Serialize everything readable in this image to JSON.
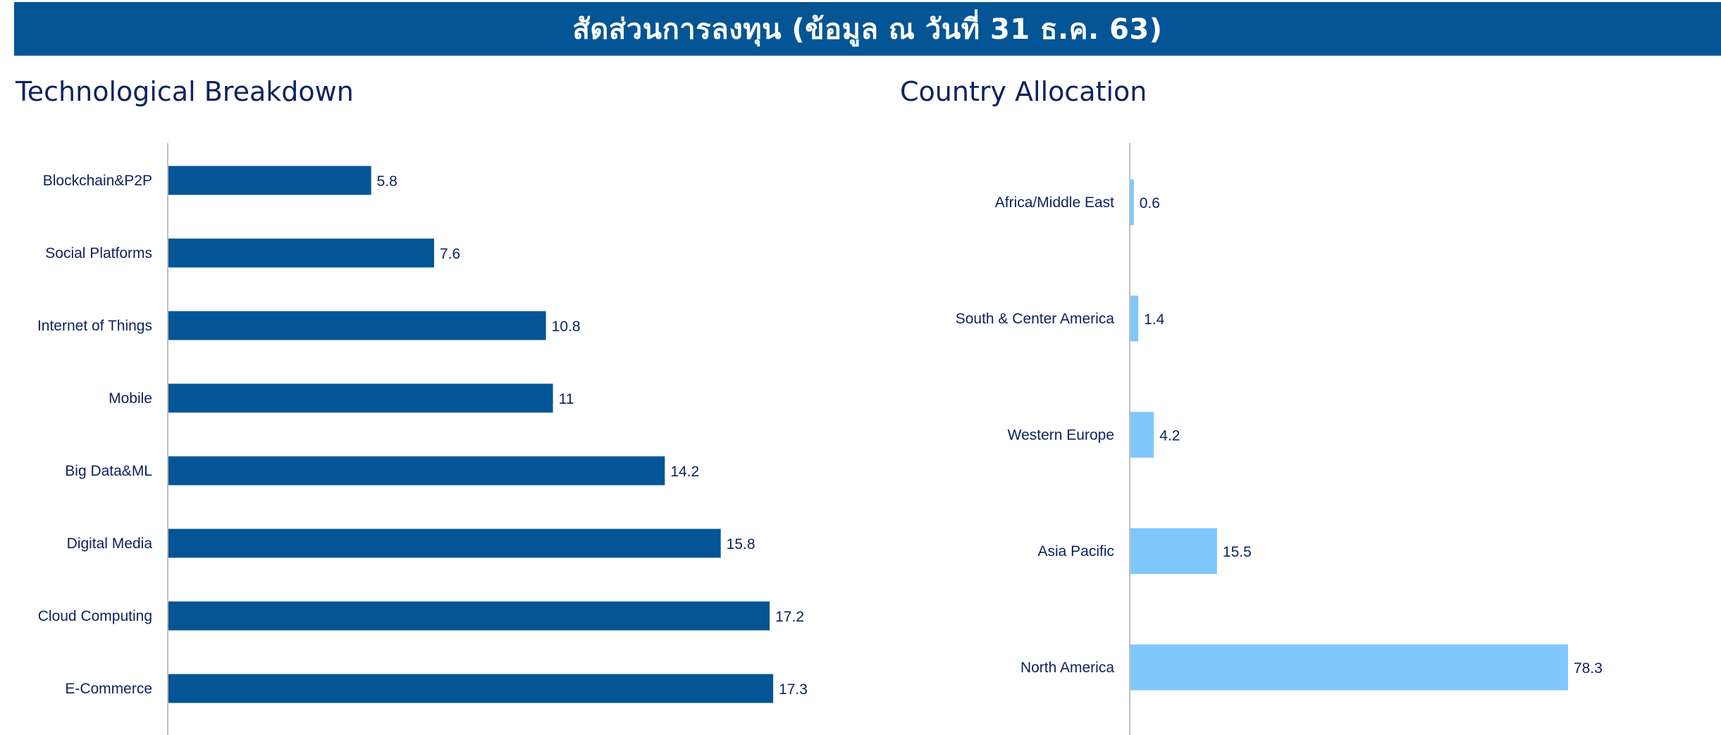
{
  "header": {
    "title": "สัดส่วนการลงทุน (ข้อมูล ณ วันที่ 31 ธ.ค. 63)",
    "background_color": "#045595"
  },
  "chart_data": [
    {
      "type": "bar",
      "orientation": "horizontal",
      "title": "Technological Breakdown",
      "categories": [
        "Blockchain&P2P",
        "Social Platforms",
        "Internet of Things",
        "Mobile",
        "Big Data&ML",
        "Digital Media",
        "Cloud Computing",
        "E-Commerce"
      ],
      "values": [
        5.8,
        7.6,
        10.8,
        11,
        14.2,
        15.8,
        17.2,
        17.3
      ],
      "value_labels": [
        "5.8",
        "7.6",
        "10.8",
        "11",
        "14.2",
        "15.8",
        "17.2",
        "17.3"
      ],
      "xlim": [
        0,
        20
      ],
      "bar_color": "#045595",
      "grid": false,
      "xlabel": "",
      "ylabel": ""
    },
    {
      "type": "bar",
      "orientation": "horizontal",
      "title": "Country Allocation",
      "categories": [
        "Africa/Middle East",
        "South & Center America",
        "Western Europe",
        "Asia Pacific",
        "North America"
      ],
      "values": [
        0.6,
        1.4,
        4.2,
        15.5,
        78.3
      ],
      "value_labels": [
        "0.6",
        "1.4",
        "4.2",
        "15.5",
        "78.3"
      ],
      "xlim": [
        0,
        100
      ],
      "bar_color": "#7fc7fc",
      "grid": false,
      "xlabel": "",
      "ylabel": ""
    }
  ]
}
